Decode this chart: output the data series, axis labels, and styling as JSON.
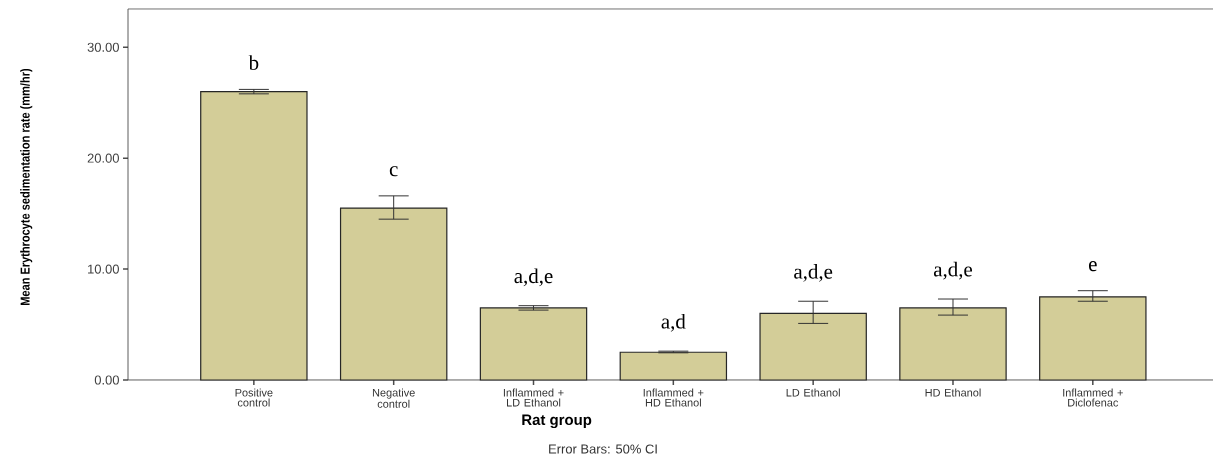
{
  "chart_data": {
    "type": "bar",
    "xlabel": "Rat group",
    "ylabel": "Mean Erythrocyte sedimentation rate (mm/hr)",
    "categories": [
      "Positive control",
      "Negative control",
      "Inflammed + LD Ethanol",
      "Inflammed + HD Ethanol",
      "LD Ethanol",
      "HD Ethanol",
      "Inflammed + Diclofenac"
    ],
    "values": [
      26.0,
      15.5,
      6.5,
      2.5,
      6.0,
      6.5,
      7.5
    ],
    "errors": [
      [
        25.8,
        26.2
      ],
      [
        14.5,
        16.6
      ],
      [
        6.3,
        6.7
      ],
      [
        2.45,
        2.6
      ],
      [
        5.1,
        7.1
      ],
      [
        5.85,
        7.3
      ],
      [
        7.1,
        8.05
      ]
    ],
    "color": "#d3cd98",
    "ylim": [
      0,
      33.45
    ],
    "yticks": [
      {
        "value": 0,
        "label": "0.00"
      },
      {
        "value": 10,
        "label": "10.00"
      },
      {
        "value": 20,
        "label": "20.00"
      },
      {
        "value": 30,
        "label": "30.00"
      }
    ],
    "annotations": [
      "b",
      "c",
      "a,d,e",
      "a,d",
      "a,d,e",
      "a,d,e",
      "e",
      "Error Bars: 50% CI"
    ]
  }
}
